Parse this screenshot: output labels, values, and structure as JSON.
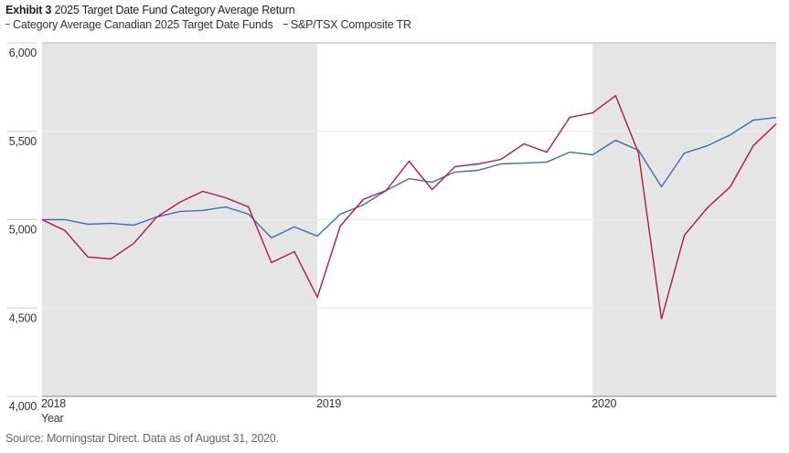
{
  "header": {
    "exhibit_label": "Exhibit 3",
    "title": "2025 Target Date Fund Category Average Return"
  },
  "footer": {
    "source": "Source: Morningstar Direct. Data as of August 31, 2020."
  },
  "chart_data": {
    "type": "line",
    "title": "2025 Target Date Fund Category Average Return",
    "xlabel": "Year",
    "ylabel": "",
    "ylim": [
      4000,
      6000
    ],
    "yticks": [
      4000,
      4500,
      5000,
      5500,
      6000
    ],
    "ytick_labels": [
      "4,000",
      "4,500",
      "5,000",
      "5,500",
      "6,000"
    ],
    "xtick_labels": [
      "2018",
      "2019",
      "2020"
    ],
    "xtick_index": [
      0,
      12,
      24
    ],
    "shaded_years": [
      "2018",
      "2020"
    ],
    "grid": true,
    "legend_position": "top-left",
    "x": [
      "2017-12",
      "2018-01",
      "2018-02",
      "2018-03",
      "2018-04",
      "2018-05",
      "2018-06",
      "2018-07",
      "2018-08",
      "2018-09",
      "2018-10",
      "2018-11",
      "2018-12",
      "2019-01",
      "2019-02",
      "2019-03",
      "2019-04",
      "2019-05",
      "2019-06",
      "2019-07",
      "2019-08",
      "2019-09",
      "2019-10",
      "2019-11",
      "2019-12",
      "2020-01",
      "2020-02",
      "2020-03",
      "2020-04",
      "2020-05",
      "2020-06",
      "2020-07",
      "2020-08"
    ],
    "series": [
      {
        "name": "Category Average Canadian 2025 Target Date Funds",
        "color": "#3e6eb4",
        "values": [
          5000,
          5000,
          4974,
          4979,
          4969,
          5015,
          5046,
          5052,
          5072,
          5031,
          4897,
          4959,
          4907,
          5031,
          5083,
          5165,
          5232,
          5212,
          5269,
          5279,
          5315,
          5320,
          5326,
          5382,
          5367,
          5449,
          5392,
          5186,
          5377,
          5418,
          5480,
          5563,
          5578
        ]
      },
      {
        "name": "S&P/TSX Composite TR",
        "color": "#b5174a",
        "values": [
          5000,
          4938,
          4788,
          4778,
          4866,
          5015,
          5098,
          5160,
          5124,
          5072,
          4757,
          4819,
          4561,
          4964,
          5114,
          5165,
          5331,
          5170,
          5300,
          5315,
          5341,
          5429,
          5382,
          5579,
          5604,
          5702,
          5377,
          4437,
          4912,
          5067,
          5186,
          5418,
          5542
        ]
      }
    ],
    "colors": {
      "shade": "#e5e5e5",
      "grid": "#ebebeb",
      "axis": "#9a9a9a"
    }
  }
}
